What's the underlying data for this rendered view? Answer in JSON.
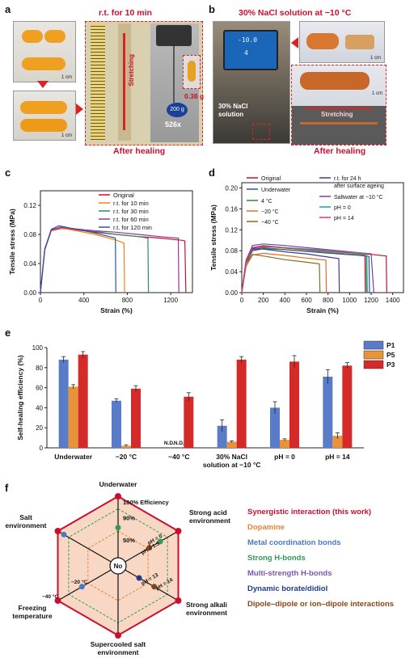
{
  "panel_a": {
    "label": "a",
    "title": "r.t. for 10 min",
    "stretching": "Stretching",
    "weight_label": "200 g",
    "mass_label": "0.38 g",
    "zoom_label": "526x",
    "after": "After healing",
    "scale_bars": [
      "1 cm",
      "1 cm",
      "1 cm"
    ]
  },
  "panel_b": {
    "label": "b",
    "title": "30% NaCl solution at −10 °C",
    "solution_label": "30% NaCl\nsolution",
    "stretching": "Stretching",
    "after": "After healing",
    "display_top": "-10.0",
    "display_bottom": "4",
    "scale_bars": [
      "1 cm",
      "1 cm"
    ]
  },
  "chart_data": [
    {
      "panel": "c",
      "type": "line",
      "xlabel": "Strain (%)",
      "ylabel": "Tensile stress (MPa)",
      "xlim": [
        0,
        1400
      ],
      "ylim": [
        0,
        0.14
      ],
      "xticks": [
        0,
        400,
        800,
        1200
      ],
      "yticks": [
        0.0,
        0.04,
        0.08,
        0.12
      ],
      "legend_position": "top-right",
      "series": [
        {
          "name": "Original",
          "color": "#c8102e",
          "x": [
            0,
            40,
            100,
            180,
            300,
            500,
            700,
            900,
            1100,
            1300,
            1330,
            1340
          ],
          "y": [
            0,
            0.06,
            0.085,
            0.088,
            0.087,
            0.083,
            0.08,
            0.077,
            0.075,
            0.072,
            0.071,
            0
          ]
        },
        {
          "name": "r.t. for 10 min",
          "color": "#ff7f0e",
          "x": [
            0,
            40,
            100,
            170,
            300,
            500,
            700,
            770,
            775
          ],
          "y": [
            0,
            0.058,
            0.085,
            0.089,
            0.086,
            0.08,
            0.072,
            0.068,
            0
          ]
        },
        {
          "name": "r.t. for 30 min",
          "color": "#2e8b57",
          "x": [
            0,
            40,
            100,
            180,
            300,
            500,
            700,
            900,
            990,
            995
          ],
          "y": [
            0,
            0.06,
            0.086,
            0.09,
            0.088,
            0.084,
            0.08,
            0.077,
            0.075,
            0
          ]
        },
        {
          "name": "r.t. for 60 min",
          "color": "#8b3a9c",
          "x": [
            0,
            40,
            100,
            180,
            300,
            500,
            700,
            900,
            1100,
            1270,
            1275
          ],
          "y": [
            0,
            0.06,
            0.086,
            0.09,
            0.088,
            0.085,
            0.083,
            0.08,
            0.077,
            0.075,
            0
          ]
        },
        {
          "name": "r.t. for 120 min",
          "color": "#3050b0",
          "x": [
            0,
            40,
            100,
            170,
            300,
            500,
            690,
            695
          ],
          "y": [
            0,
            0.06,
            0.087,
            0.092,
            0.088,
            0.082,
            0.075,
            0
          ]
        }
      ]
    },
    {
      "panel": "d",
      "type": "line",
      "xlabel": "Strain (%)",
      "ylabel": "Tensile stress (MPa)",
      "xlim": [
        0,
        1500
      ],
      "ylim": [
        0,
        0.21
      ],
      "xticks": [
        0,
        200,
        400,
        600,
        800,
        1000,
        1200,
        1400
      ],
      "yticks": [
        0.0,
        0.04,
        0.08,
        0.12,
        0.16,
        0.2
      ],
      "legend_position": "top",
      "series": [
        {
          "name": "Original",
          "color": "#c8102e",
          "x": [
            0,
            40,
            100,
            200,
            400,
            700,
            1000,
            1200,
            1340,
            1345
          ],
          "y": [
            0,
            0.06,
            0.085,
            0.088,
            0.086,
            0.081,
            0.076,
            0.073,
            0.07,
            0
          ]
        },
        {
          "name": "Underwater",
          "color": "#3050b0",
          "x": [
            0,
            40,
            100,
            200,
            400,
            700,
            900,
            1100,
            1180,
            1185
          ],
          "y": [
            0,
            0.055,
            0.08,
            0.084,
            0.082,
            0.077,
            0.074,
            0.071,
            0.069,
            0
          ]
        },
        {
          "name": "4 °C",
          "color": "#2e8b2e",
          "x": [
            0,
            40,
            100,
            200,
            400,
            700,
            900,
            1100,
            1150,
            1155
          ],
          "y": [
            0,
            0.056,
            0.082,
            0.086,
            0.082,
            0.078,
            0.075,
            0.072,
            0.071,
            0
          ]
        },
        {
          "name": "−20 °C",
          "color": "#e07020",
          "x": [
            0,
            40,
            100,
            200,
            400,
            600,
            780,
            785
          ],
          "y": [
            0,
            0.05,
            0.072,
            0.075,
            0.071,
            0.066,
            0.062,
            0
          ]
        },
        {
          "name": "−40 °C",
          "color": "#8b6b1c",
          "x": [
            0,
            40,
            100,
            200,
            400,
            600,
            720,
            725
          ],
          "y": [
            0,
            0.055,
            0.073,
            0.07,
            0.063,
            0.058,
            0.055,
            0
          ]
        },
        {
          "name": "r.t. for 24 h after surface ageing",
          "color": "#3a3aa0",
          "x": [
            0,
            40,
            100,
            200,
            400,
            600,
            800,
            900,
            905
          ],
          "y": [
            0,
            0.06,
            0.084,
            0.083,
            0.078,
            0.074,
            0.068,
            0.065,
            0
          ]
        },
        {
          "name": "Saltwater at −10 °C",
          "color": "#7b3fa0",
          "x": [
            0,
            40,
            100,
            200,
            400,
            700,
            1000,
            1200,
            1225
          ],
          "y": [
            0,
            0.062,
            0.09,
            0.093,
            0.09,
            0.084,
            0.078,
            0.074,
            0
          ]
        },
        {
          "name": "pH = 0",
          "color": "#20a0a0",
          "x": [
            0,
            40,
            100,
            200,
            400,
            700,
            900,
            1160,
            1165
          ],
          "y": [
            0,
            0.058,
            0.086,
            0.09,
            0.086,
            0.082,
            0.078,
            0.075,
            0
          ]
        },
        {
          "name": "pH = 14",
          "color": "#e0307a",
          "x": [
            0,
            40,
            100,
            200,
            400,
            700,
            1000,
            1140,
            1145
          ],
          "y": [
            0,
            0.058,
            0.086,
            0.089,
            0.085,
            0.08,
            0.076,
            0.073,
            0
          ]
        }
      ]
    },
    {
      "panel": "e",
      "type": "bar",
      "ylabel": "Self-healing efficiency (%)",
      "ylim": [
        0,
        100
      ],
      "yticks": [
        0,
        20,
        40,
        60,
        80,
        100
      ],
      "categories": [
        "Underwater",
        "−20 °C",
        "−40 °C",
        "30% NaCl\nsolution at −10 °C",
        "pH = 0",
        "pH = 14"
      ],
      "legend_position": "top-right",
      "annotations": [
        "N.D.",
        "N.D."
      ],
      "series": [
        {
          "name": "P1",
          "color": "#5a7cc8",
          "values": [
            88,
            47,
            null,
            22,
            40,
            71
          ],
          "errors": [
            3,
            2,
            0,
            6,
            6,
            7
          ]
        },
        {
          "name": "P5",
          "color": "#e8933a",
          "values": [
            61,
            2,
            null,
            6,
            8,
            12
          ],
          "errors": [
            2,
            1,
            0,
            1,
            1,
            3
          ]
        },
        {
          "name": "P3",
          "color": "#d42a2a",
          "values": [
            93,
            59,
            51,
            88,
            86,
            82
          ],
          "errors": [
            3,
            3,
            4,
            3,
            6,
            3
          ]
        }
      ]
    }
  ],
  "panel_c_label": "c",
  "panel_d_label": "d",
  "panel_e_label": "e",
  "panel_f": {
    "label": "f",
    "axes": [
      "Underwater",
      "Strong acid environment",
      "Strong alkali environment",
      "Supercooled salt environment",
      "Freezing temperature",
      "Salt environment"
    ],
    "ring_labels": [
      "100% Efficiency",
      "90%",
      "50%"
    ],
    "center_label": "No",
    "inner_labels": [
      "pH = 0",
      "pH = 1.3",
      "pH = 13",
      "pH = 14",
      "−20 °C",
      "−40 °C"
    ],
    "legend": [
      {
        "text": "Synergistic interaction (this work)",
        "color": "#c8102e"
      },
      {
        "text": "Dopamine",
        "color": "#e8833a"
      },
      {
        "text": "Metal coordination bonds",
        "color": "#4a78c8"
      },
      {
        "text": "Strong H-bonds",
        "color": "#2e9b5a"
      },
      {
        "text": "Multi-strength H-bonds",
        "color": "#7a58b0"
      },
      {
        "text": "Dynamic borate/didiol",
        "color": "#1f3a8a"
      },
      {
        "text": "Dipole–dipole or ion–dipole interactions",
        "color": "#8b4513"
      }
    ]
  }
}
